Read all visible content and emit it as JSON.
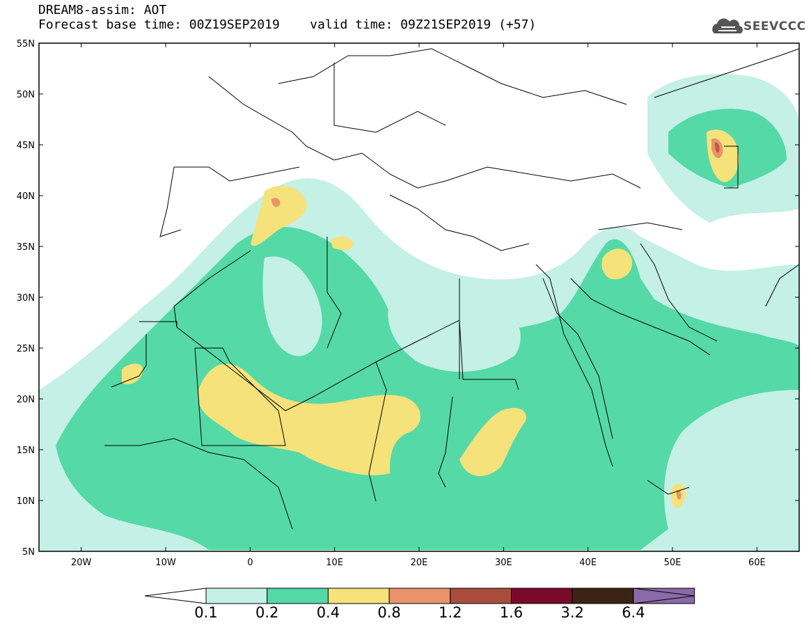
{
  "header": {
    "model_line": "DREAM8-assim: AOT",
    "base_time_line": "Forecast base time: 00Z19SEP2019",
    "valid_time_line": "valid time: 09Z21SEP2019 (+57)"
  },
  "logo": {
    "text": "SEEVCCC",
    "icon": "cloud-icon"
  },
  "map": {
    "projection": "lat-lon",
    "lon_range": [
      -25,
      65
    ],
    "lat_range": [
      5,
      55
    ],
    "lat_labels": [
      "55N",
      "50N",
      "45N",
      "40N",
      "35N",
      "30N",
      "25N",
      "20N",
      "15N",
      "10N",
      "5N"
    ],
    "lat_values": [
      55,
      50,
      45,
      40,
      35,
      30,
      25,
      20,
      15,
      10,
      5
    ],
    "lon_labels": [
      "20W",
      "10W",
      "0",
      "10E",
      "20E",
      "30E",
      "40E",
      "50E",
      "60E"
    ],
    "lon_values": [
      -20,
      -10,
      0,
      10,
      20,
      30,
      40,
      50,
      60
    ],
    "field": "Aerosol Optical Thickness"
  },
  "colorbar": {
    "labels": [
      "0.1",
      "0.2",
      "0.4",
      "0.8",
      "1.2",
      "1.6",
      "3.2",
      "6.4"
    ],
    "colors": [
      "#ffffff",
      "#c4f0e6",
      "#55d9a7",
      "#f5e27a",
      "#e8936a",
      "#a94c3e",
      "#7a0a2a",
      "#3b2417",
      "#8a6aa8"
    ],
    "extend": "both"
  },
  "colors": {
    "low": "#c4f0e6",
    "mid": "#55d9a7",
    "high": "#f5e27a",
    "higher": "#e8936a",
    "highest": "#c0574a"
  }
}
